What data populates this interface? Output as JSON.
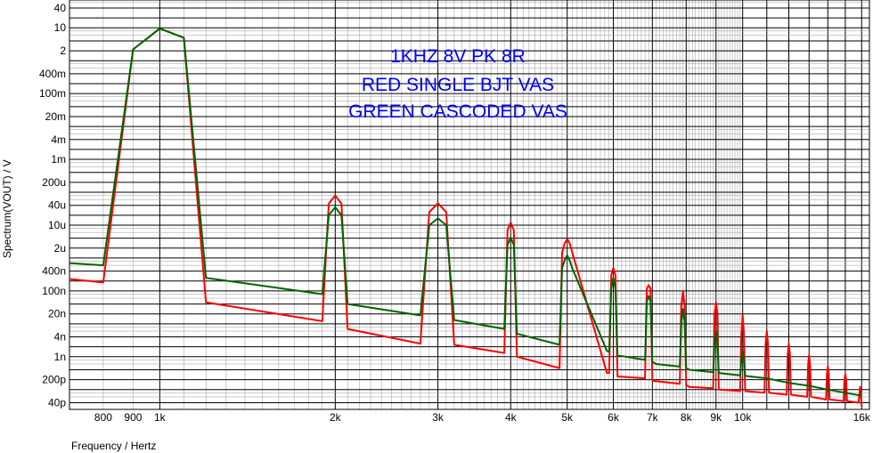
{
  "chart_data": {
    "type": "line",
    "xlabel": "Frequency / Hertz",
    "ylabel": "Spectrum(VOUT) / V",
    "x_scale": "log",
    "y_scale": "log",
    "xlim": [
      700,
      16500
    ],
    "ylim": [
      2.5e-11,
      70
    ],
    "grid": true,
    "legend": "none",
    "annotations": [
      "1KHZ 8V PK 8R",
      "RED SINGLE BJT VAS",
      "GREEN CASCODED VAS"
    ],
    "x_tick_labels": [
      {
        "value": 800,
        "label": "800"
      },
      {
        "value": 900,
        "label": "900"
      },
      {
        "value": 1000,
        "label": "1k"
      },
      {
        "value": 2000,
        "label": "2k"
      },
      {
        "value": 3000,
        "label": "3k"
      },
      {
        "value": 4000,
        "label": "4k"
      },
      {
        "value": 5000,
        "label": "5k"
      },
      {
        "value": 6000,
        "label": "6k"
      },
      {
        "value": 7000,
        "label": "7k"
      },
      {
        "value": 8000,
        "label": "8k"
      },
      {
        "value": 9000,
        "label": "9k"
      },
      {
        "value": 10000,
        "label": "10k"
      },
      {
        "value": 16000,
        "label": "16k"
      }
    ],
    "y_tick_labels": [
      {
        "value": 40,
        "label": "40"
      },
      {
        "value": 10,
        "label": "10"
      },
      {
        "value": 2,
        "label": "2"
      },
      {
        "value": 0.4,
        "label": "400m"
      },
      {
        "value": 0.1,
        "label": "100m"
      },
      {
        "value": 0.02,
        "label": "20m"
      },
      {
        "value": 0.004,
        "label": "4m"
      },
      {
        "value": 0.001,
        "label": "1m"
      },
      {
        "value": 0.0002,
        "label": "200u"
      },
      {
        "value": 4e-05,
        "label": "40u"
      },
      {
        "value": 1e-05,
        "label": "10u"
      },
      {
        "value": 2e-06,
        "label": "2u"
      },
      {
        "value": 4e-07,
        "label": "400n"
      },
      {
        "value": 1e-07,
        "label": "100n"
      },
      {
        "value": 2e-08,
        "label": "20n"
      },
      {
        "value": 4e-09,
        "label": "4n"
      },
      {
        "value": 1e-09,
        "label": "1n"
      },
      {
        "value": 2e-10,
        "label": "200p"
      },
      {
        "value": 4e-11,
        "label": "40p"
      }
    ],
    "series": [
      {
        "color": "#ff0000",
        "x": [
          700,
          800,
          900,
          1000,
          1100,
          1200,
          1900,
          1950,
          2000,
          2050,
          2100,
          2800,
          2900,
          3000,
          3100,
          3200,
          3900,
          3950,
          4000,
          4050,
          4100,
          4850,
          4900,
          4950,
          5000,
          5050,
          5100,
          5850,
          5900,
          5950,
          6000,
          6050,
          6100,
          6800,
          6850,
          6900,
          6950,
          7000,
          7050,
          7100,
          7800,
          7850,
          7900,
          7950,
          8000,
          8050,
          8100,
          8900,
          8950,
          9000,
          9050,
          9100,
          9900,
          9950,
          10000,
          10050,
          10100,
          10900,
          10950,
          11000,
          11050,
          11100,
          11900,
          11950,
          12000,
          12050,
          12100,
          12900,
          12950,
          13000,
          13050,
          13100,
          13900,
          13950,
          14000,
          14050,
          14100,
          14900,
          14950,
          15000,
          15050,
          15100,
          15800,
          15900,
          16000
        ],
        "y": [
          2.3e-07,
          1.8e-07,
          2.2,
          9.5,
          5,
          4.5e-08,
          1.2e-08,
          4.5e-05,
          8e-05,
          4.5e-05,
          7e-09,
          2.5e-09,
          2.5e-05,
          4.6e-05,
          2.5e-05,
          2.3e-09,
          1.3e-09,
          7e-06,
          1.2e-05,
          7e-06,
          1e-09,
          4.5e-10,
          1.5e-06,
          2.8e-06,
          3.8e-06,
          2.8e-06,
          1.5e-06,
          3.2e-10,
          3.2e-10,
          3e-07,
          5e-07,
          3e-07,
          2.5e-10,
          2.2e-10,
          1.2e-07,
          1.5e-07,
          1.2e-07,
          2e-10,
          1.8e-10,
          1.8e-10,
          1.5e-10,
          3.5e-08,
          1e-07,
          3.5e-08,
          1.3e-10,
          1.3e-10,
          1.2e-10,
          1.1e-10,
          2e-08,
          4.5e-08,
          2e-08,
          1e-10,
          9e-11,
          5e-09,
          1.8e-08,
          5e-09,
          9e-11,
          8e-11,
          2.5e-09,
          6e-09,
          2.5e-09,
          8e-11,
          7e-11,
          1.2e-09,
          2.5e-09,
          1.2e-09,
          7e-11,
          6e-11,
          6e-10,
          1.1e-09,
          6e-10,
          6e-11,
          5e-11,
          3e-10,
          5e-10,
          3e-10,
          5e-11,
          4.5e-11,
          2e-10,
          3e-10,
          2e-10,
          4.5e-11,
          4e-11,
          1.2e-10,
          3e-11
        ]
      },
      {
        "color": "#006400",
        "x": [
          700,
          800,
          900,
          1000,
          1100,
          1200,
          1900,
          1950,
          2000,
          2050,
          2100,
          2800,
          2900,
          3000,
          3100,
          3200,
          3900,
          3950,
          4000,
          4050,
          4100,
          4850,
          4900,
          4950,
          5000,
          5050,
          5100,
          5850,
          5900,
          5950,
          6000,
          6050,
          6100,
          6800,
          6850,
          6900,
          6950,
          7000,
          7050,
          7100,
          7800,
          7850,
          7900,
          7950,
          8000,
          8050,
          8100,
          8900,
          8950,
          9000,
          9050,
          9100,
          9900,
          9950,
          10000,
          10050,
          10100,
          11000,
          12000,
          13000,
          14000,
          15000,
          16000
        ],
        "y": [
          7e-07,
          6e-07,
          2.2,
          9.5,
          5,
          2.5e-07,
          8e-08,
          2e-05,
          3.5e-05,
          2e-05,
          4e-08,
          1.8e-08,
          1e-05,
          1.6e-05,
          1e-05,
          1.3e-08,
          7e-09,
          2.5e-06,
          4.2e-06,
          2.5e-06,
          5e-09,
          2.3e-09,
          5e-07,
          8.5e-07,
          1.2e-06,
          8.5e-07,
          5e-07,
          1.5e-09,
          1.4e-09,
          1.2e-07,
          2.5e-07,
          1.2e-07,
          1.1e-09,
          8e-10,
          5e-08,
          7e-08,
          5e-08,
          7e-10,
          6.5e-10,
          6e-10,
          5e-10,
          1.2e-08,
          2.8e-08,
          1.2e-08,
          4.5e-10,
          4.2e-10,
          4e-10,
          3.4e-10,
          3e-09,
          6e-09,
          3e-09,
          3.2e-10,
          2.7e-10,
          8e-10,
          1.5e-09,
          8e-10,
          2.6e-10,
          2.2e-10,
          1.6e-10,
          1.3e-10,
          1e-10,
          8e-11,
          6.5e-11
        ]
      }
    ]
  }
}
